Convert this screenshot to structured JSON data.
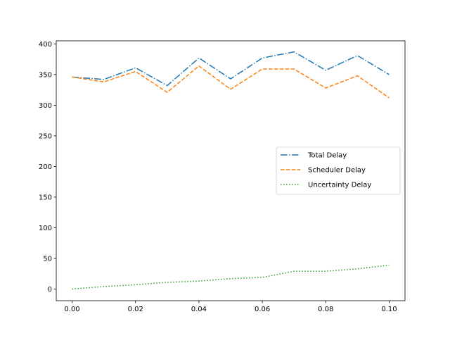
{
  "chart_data": {
    "type": "line",
    "title": "",
    "xlabel": "",
    "ylabel": "",
    "x": [
      0.0,
      0.01,
      0.02,
      0.03,
      0.04,
      0.05,
      0.06,
      0.07,
      0.08,
      0.09,
      0.1
    ],
    "xlim": [
      -0.005,
      0.105
    ],
    "ylim": [
      -19,
      405
    ],
    "xticks": [
      0.0,
      0.02,
      0.04,
      0.06,
      0.08,
      0.1
    ],
    "xtick_labels": [
      "0.00",
      "0.02",
      "0.04",
      "0.06",
      "0.08",
      "0.10"
    ],
    "yticks": [
      0,
      50,
      100,
      150,
      200,
      250,
      300,
      350,
      400
    ],
    "ytick_labels": [
      "0",
      "50",
      "100",
      "150",
      "200",
      "250",
      "300",
      "350",
      "400"
    ],
    "grid": false,
    "legend_position": "center-right",
    "series": [
      {
        "name": "Total Delay",
        "color": "#1f77b4",
        "linestyle": "dashdot",
        "values": [
          346,
          342,
          361,
          332,
          377,
          343,
          377,
          387,
          357,
          381,
          350
        ]
      },
      {
        "name": "Scheduler Delay",
        "color": "#ff7f0e",
        "linestyle": "dashed",
        "values": [
          346,
          338,
          355,
          321,
          364,
          326,
          359,
          359,
          328,
          348,
          312
        ]
      },
      {
        "name": "Uncertainty Delay",
        "color": "#2ca02c",
        "linestyle": "dotted",
        "values": [
          0,
          4,
          7,
          11,
          13,
          17,
          19,
          29,
          29,
          33,
          39
        ]
      }
    ]
  }
}
